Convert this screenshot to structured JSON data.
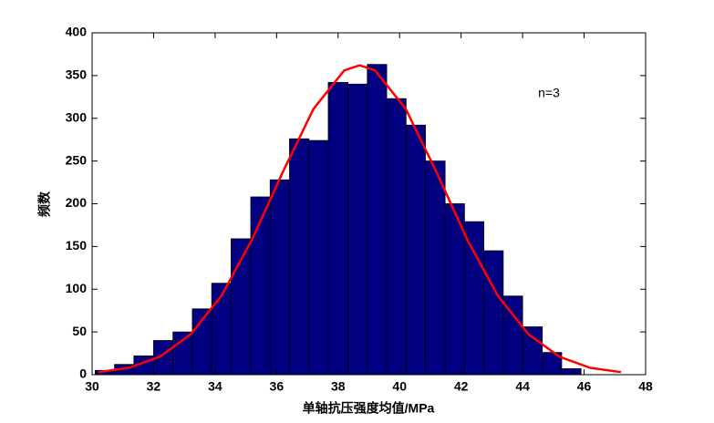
{
  "chart_data": {
    "type": "histogram",
    "xlabel": "单轴抗压强度均值/MPa",
    "ylabel": "频数",
    "annotation": "n=3",
    "bins": [
      30.1,
      30.73,
      31.36,
      32.0,
      32.63,
      33.26,
      33.89,
      34.52,
      35.16,
      35.79,
      36.42,
      37.05,
      37.68,
      38.32,
      38.95,
      39.58,
      40.21,
      40.84,
      41.48,
      42.11,
      42.74,
      43.37,
      44.0,
      44.64,
      45.27,
      45.9
    ],
    "counts": [
      5,
      12,
      22,
      40,
      50,
      77,
      107,
      159,
      208,
      228,
      276,
      274,
      342,
      340,
      363,
      323,
      292,
      250,
      200,
      179,
      145,
      92,
      56,
      26,
      7
    ],
    "color": "#000080",
    "curve": {
      "color": "#ff0000",
      "x": [
        30.2,
        31.2,
        32.2,
        33.2,
        34.2,
        35.2,
        36.2,
        37.2,
        38.2,
        38.7,
        39.2,
        40.2,
        41.2,
        42.2,
        43.2,
        44.2,
        45.2,
        46.2,
        47.2
      ],
      "values": [
        3,
        8,
        21,
        47,
        92,
        158,
        237,
        311,
        356,
        362,
        356,
        311,
        237,
        158,
        92,
        47,
        21,
        8,
        3
      ]
    },
    "xlim": [
      30,
      48
    ],
    "xticks": [
      30,
      32,
      34,
      36,
      38,
      40,
      42,
      44,
      46,
      48
    ],
    "ylim": [
      0,
      400
    ],
    "yticks": [
      0,
      50,
      100,
      150,
      200,
      250,
      300,
      350,
      400
    ],
    "grid": false
  }
}
